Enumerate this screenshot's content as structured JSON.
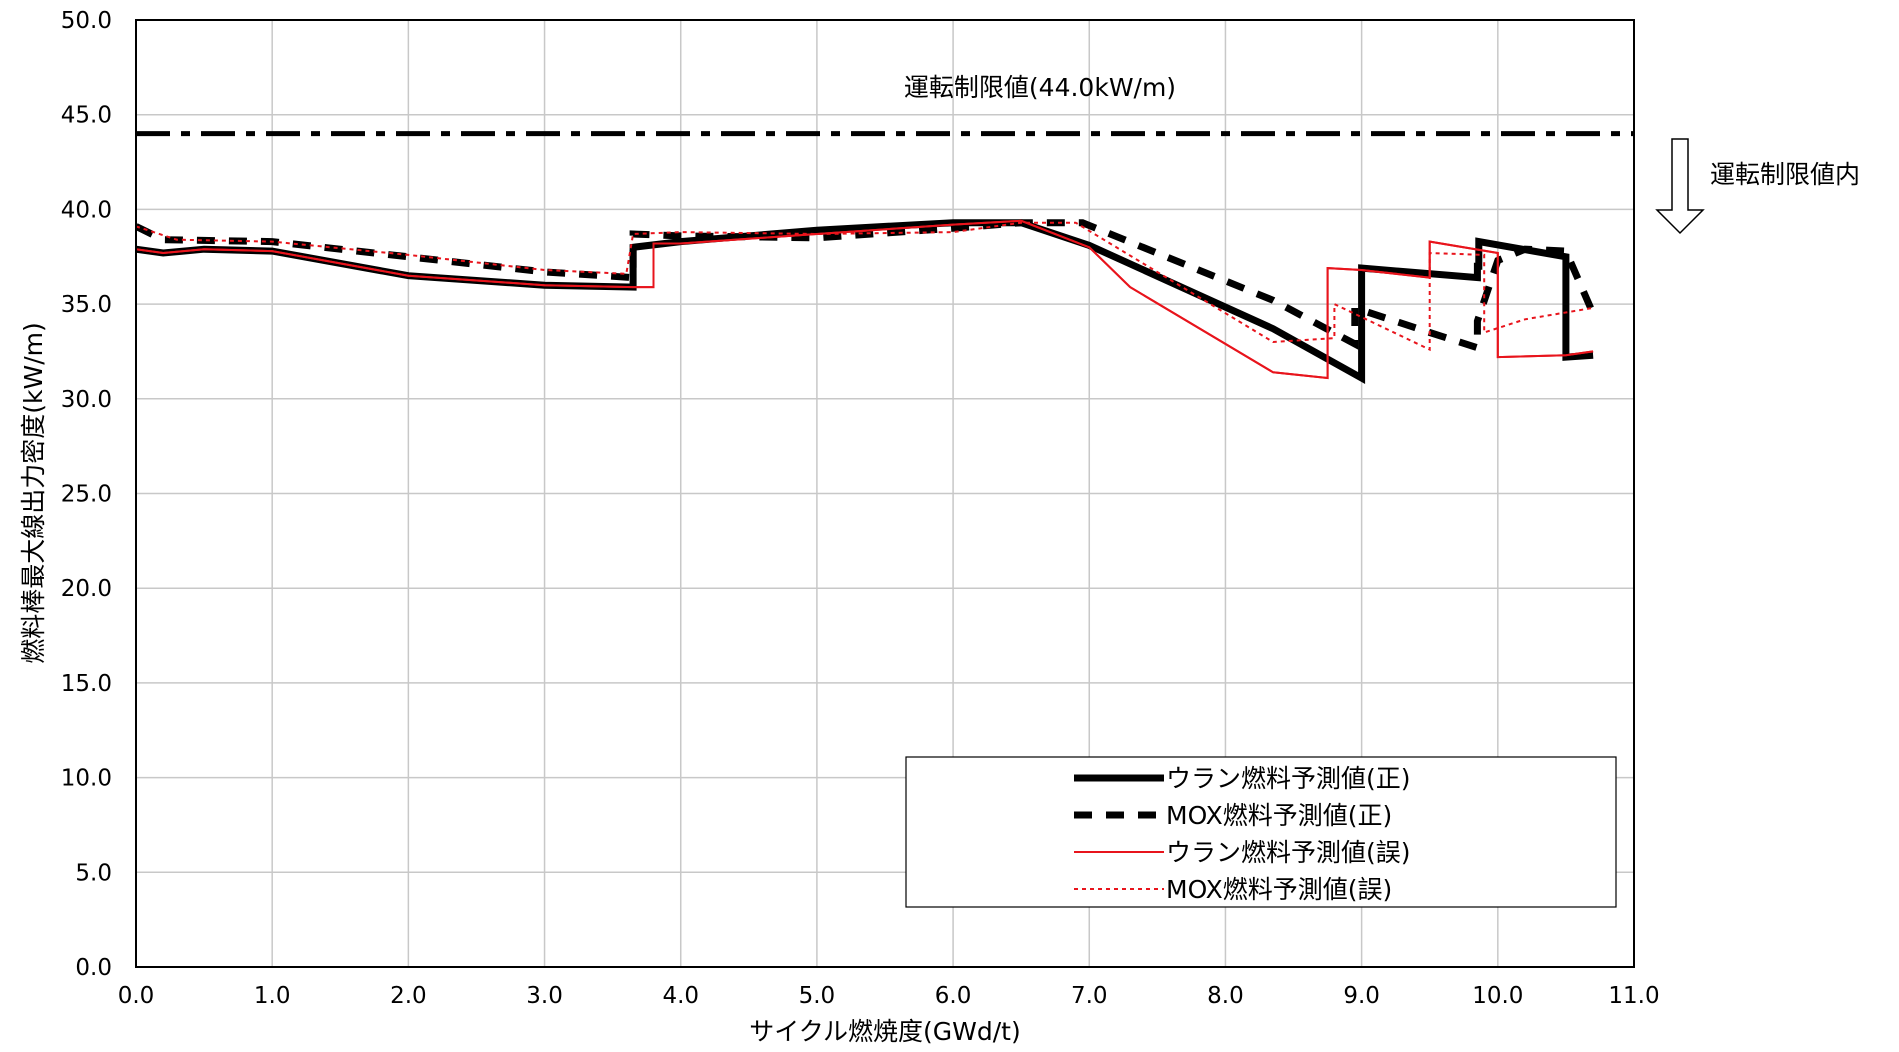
{
  "chart_data": {
    "type": "line",
    "title": "",
    "xlabel": "サイクル燃焼度(GWd/t)",
    "ylabel": "燃料棒最大線出力密度(kW/m)",
    "xlim": [
      0,
      11
    ],
    "ylim": [
      0,
      50
    ],
    "x_ticks": [
      "0.0",
      "1.0",
      "2.0",
      "3.0",
      "4.0",
      "5.0",
      "6.0",
      "7.0",
      "8.0",
      "9.0",
      "10.0",
      "11.0"
    ],
    "y_ticks": [
      "0.0",
      "5.0",
      "10.0",
      "15.0",
      "20.0",
      "25.0",
      "30.0",
      "35.0",
      "40.0",
      "45.0",
      "50.0"
    ],
    "grid": true,
    "legend_position": "bottom-right",
    "limit_line": {
      "value": 44.0,
      "label": "運転制限値(44.0kW/m)",
      "color": "#000000"
    },
    "within_limit_label": "運転制限値内",
    "series": [
      {
        "name": "ウラン燃料予測値(正)",
        "color": "#000000",
        "style": "solid-thick",
        "x": [
          0,
          0.2,
          0.5,
          1.0,
          2.0,
          3.0,
          3.65,
          3.65,
          4.0,
          5.0,
          6.0,
          6.5,
          7.0,
          8.35,
          9.0,
          9.0,
          9.85,
          9.85,
          9.86,
          9.86,
          10.5,
          10.5,
          10.7
        ],
        "y": [
          37.9,
          37.7,
          37.9,
          37.8,
          36.5,
          36.0,
          35.9,
          38.0,
          38.3,
          38.9,
          39.3,
          39.3,
          38.1,
          33.7,
          31.1,
          36.9,
          36.4,
          37.0,
          37.0,
          38.3,
          37.5,
          32.2,
          32.3
        ]
      },
      {
        "name": "MOX燃料予測値(正)",
        "color": "#000000",
        "style": "dashed-thick",
        "x": [
          0,
          0.2,
          1.0,
          2.0,
          3.0,
          3.65,
          3.65,
          4.0,
          5.0,
          6.0,
          6.5,
          6.95,
          8.35,
          8.95,
          8.95,
          9.5,
          9.85,
          9.85,
          10.0,
          10.2,
          10.5,
          10.7
        ],
        "y": [
          39.1,
          38.4,
          38.3,
          37.5,
          36.7,
          36.4,
          38.7,
          38.6,
          38.5,
          39.0,
          39.3,
          39.3,
          35.2,
          32.9,
          34.8,
          33.5,
          32.7,
          34.1,
          37.3,
          37.9,
          37.8,
          34.5
        ]
      },
      {
        "name": "ウラン燃料予測値(誤)",
        "color": "#e8141c",
        "style": "solid-thin",
        "x": [
          0,
          0.2,
          0.5,
          1.0,
          2.0,
          3.0,
          3.65,
          3.8,
          3.8,
          4.0,
          5.0,
          6.0,
          6.5,
          7.0,
          7.3,
          8.35,
          8.75,
          8.75,
          9.0,
          9.5,
          9.5,
          10.0,
          10.0,
          10.5,
          10.7
        ],
        "y": [
          37.9,
          37.7,
          37.9,
          37.8,
          36.5,
          36.0,
          35.9,
          35.9,
          38.2,
          38.2,
          38.7,
          39.2,
          39.4,
          38.0,
          35.9,
          31.4,
          31.1,
          36.9,
          36.8,
          36.4,
          38.3,
          37.7,
          32.2,
          32.3,
          32.5
        ]
      },
      {
        "name": "MOX燃料予測値(誤)",
        "color": "#e8141c",
        "style": "dotted",
        "x": [
          0,
          0.3,
          1.0,
          2.0,
          3.0,
          3.6,
          3.65,
          4.0,
          5.0,
          6.0,
          6.5,
          6.9,
          8.35,
          8.8,
          8.8,
          9.5,
          9.5,
          9.9,
          9.9,
          10.2,
          10.7
        ],
        "y": [
          39.1,
          38.4,
          38.3,
          37.6,
          36.8,
          36.6,
          38.7,
          38.8,
          38.7,
          38.8,
          39.3,
          39.3,
          33.0,
          33.2,
          35.0,
          32.6,
          37.7,
          37.6,
          33.5,
          34.2,
          34.8
        ]
      }
    ]
  }
}
